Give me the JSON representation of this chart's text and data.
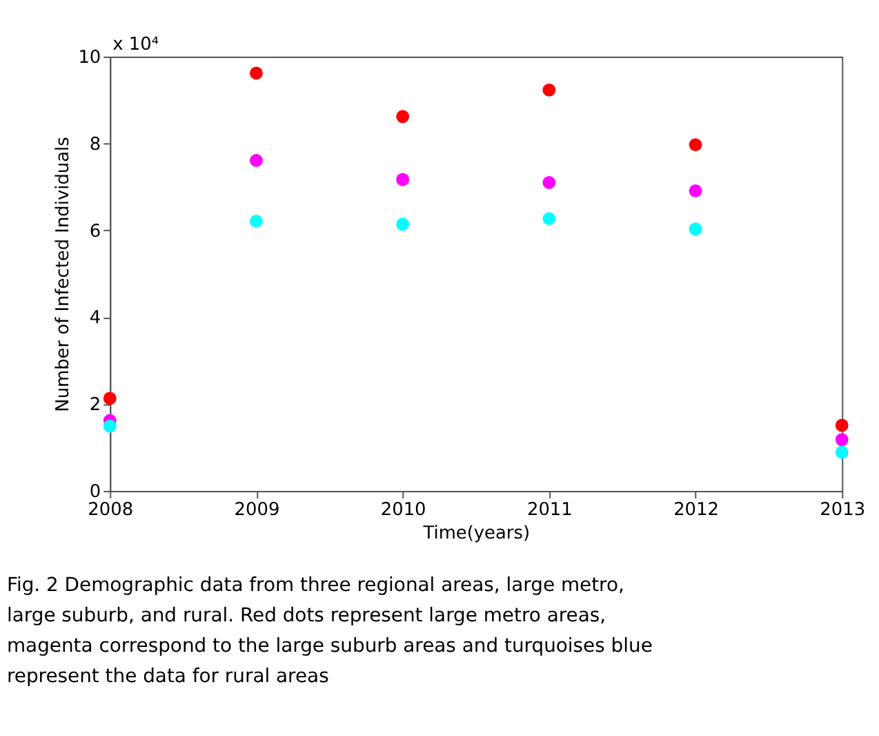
{
  "chart_data": {
    "type": "scatter",
    "xlabel": "Time(years)",
    "ylabel": "Number of Infected Individuals",
    "x": [
      2008,
      2009,
      2010,
      2011,
      2012,
      2013
    ],
    "series": [
      {
        "color": "#ff0000",
        "values": [
          2.13,
          9.62,
          8.62,
          9.23,
          7.97,
          1.51
        ]
      },
      {
        "color": "#ff00ff",
        "values": [
          1.62,
          7.61,
          7.17,
          7.1,
          6.91,
          1.18
        ]
      },
      {
        "color": "#00ffff",
        "values": [
          1.49,
          6.21,
          6.14,
          6.27,
          6.03,
          0.89
        ]
      }
    ],
    "xlim": [
      2008,
      2013
    ],
    "xticks": [
      2008,
      2009,
      2010,
      2011,
      2012,
      2013
    ],
    "ylim": [
      0,
      10
    ],
    "yticks": [
      0,
      2,
      4,
      6,
      8,
      10
    ],
    "grid": false,
    "legend": false,
    "marker": "circle",
    "annotations": [
      "x 10⁴",
      "Fig. 2 Demographic data from three regional areas, large metro, large suburb, and rural. Red dots represent large metro areas, magenta correspond to the large suburb areas and turquoises blue represent the data for rural areas"
    ]
  }
}
